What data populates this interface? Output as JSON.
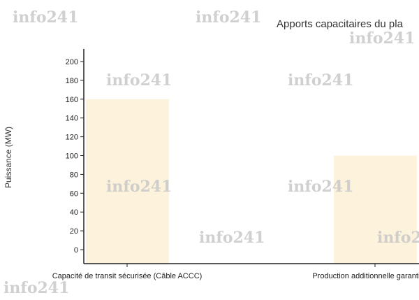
{
  "chart_data": {
    "type": "bar",
    "title": "Apports capacitaires du pla",
    "xlabel": "",
    "ylabel": "Puissance (MW)",
    "categories": [
      "Capacité de transit sécurisée (Câble ACCC)",
      "Production additionnelle garantie (Tu"
    ],
    "values": [
      160,
      100
    ],
    "yticks": [
      0,
      20,
      40,
      60,
      80,
      100,
      120,
      140,
      160,
      180,
      200
    ],
    "ylim": [
      -15,
      213
    ],
    "grid": false,
    "bar_color": "#fdf2dc"
  },
  "watermark": "info241"
}
